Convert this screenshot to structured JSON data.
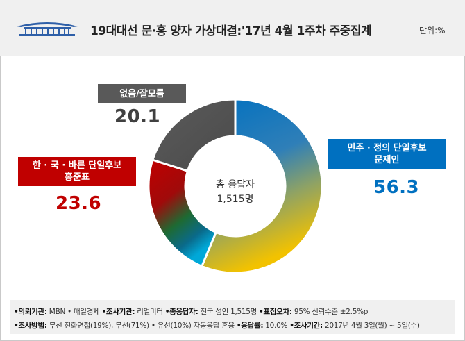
{
  "header": {
    "title": "19대대선 문·홍 양자 가상대결:'17년 4월 1주차 주중집계",
    "unit": "단위:%"
  },
  "chart_data": {
    "type": "pie",
    "variant": "donut",
    "center_label": [
      "총 응답자",
      "1,515명"
    ],
    "slices": [
      {
        "label": "민주 · 정의 단일후보 문재인",
        "label_lines": [
          "민주 · 정의 단일후보",
          "문재인"
        ],
        "value": 56.3,
        "color": "#0070c0"
      },
      {
        "label": "한 · 국 · 바른 단일후보 홍준표",
        "label_lines": [
          "한 · 국 · 바른 단일후보",
          "홍준표"
        ],
        "value": 23.6,
        "color": "#c00000"
      },
      {
        "label": "없음/잘모름",
        "label_lines": [
          "없음/잘모름"
        ],
        "value": 20.1,
        "color": "#595959"
      }
    ]
  },
  "footer": {
    "line1": [
      {
        "k": "•의뢰기관:",
        "v": " MBN • 매일경제 "
      },
      {
        "k": "•조사기관:",
        "v": " 리얼미터 "
      },
      {
        "k": "•총응답자:",
        "v": " 전국 성인 1,515명 "
      },
      {
        "k": "•표집오차:",
        "v": " 95% 신뢰수준 ±2.5%p"
      }
    ],
    "line2": [
      {
        "k": "•조사방법:",
        "v": " 무선 전화면접(19%), 무선(71%) • 유선(10%) 자동응답 혼용 "
      },
      {
        "k": "•응답률:",
        "v": " 10.0% "
      },
      {
        "k": "•조사기간:",
        "v": " 2017년 4월 3일(월) ~ 5일(수)"
      }
    ]
  }
}
